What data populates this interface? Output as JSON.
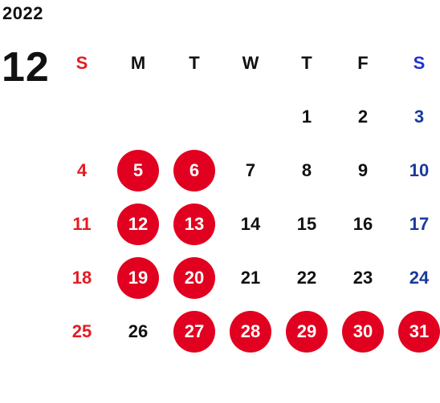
{
  "header": {
    "year": "2022",
    "month": "12"
  },
  "weekdays": [
    "S",
    "M",
    "T",
    "W",
    "T",
    "F",
    "S"
  ],
  "weeks": [
    [
      "",
      "",
      "",
      "",
      "1",
      "2",
      "3"
    ],
    [
      "4",
      "5",
      "6",
      "7",
      "8",
      "9",
      "10"
    ],
    [
      "11",
      "12",
      "13",
      "14",
      "15",
      "16",
      "17"
    ],
    [
      "18",
      "19",
      "20",
      "21",
      "22",
      "23",
      "24"
    ],
    [
      "25",
      "26",
      "27",
      "28",
      "29",
      "30",
      "31"
    ]
  ],
  "highlighted_days": [
    "5",
    "6",
    "12",
    "13",
    "19",
    "20",
    "27",
    "28",
    "29",
    "30",
    "31"
  ],
  "colors": {
    "sunday": "#e41b23",
    "saturday": "#1a3a9a",
    "saturday_header": "#1d33d6",
    "highlight": "#e1001f",
    "text": "#111111"
  }
}
